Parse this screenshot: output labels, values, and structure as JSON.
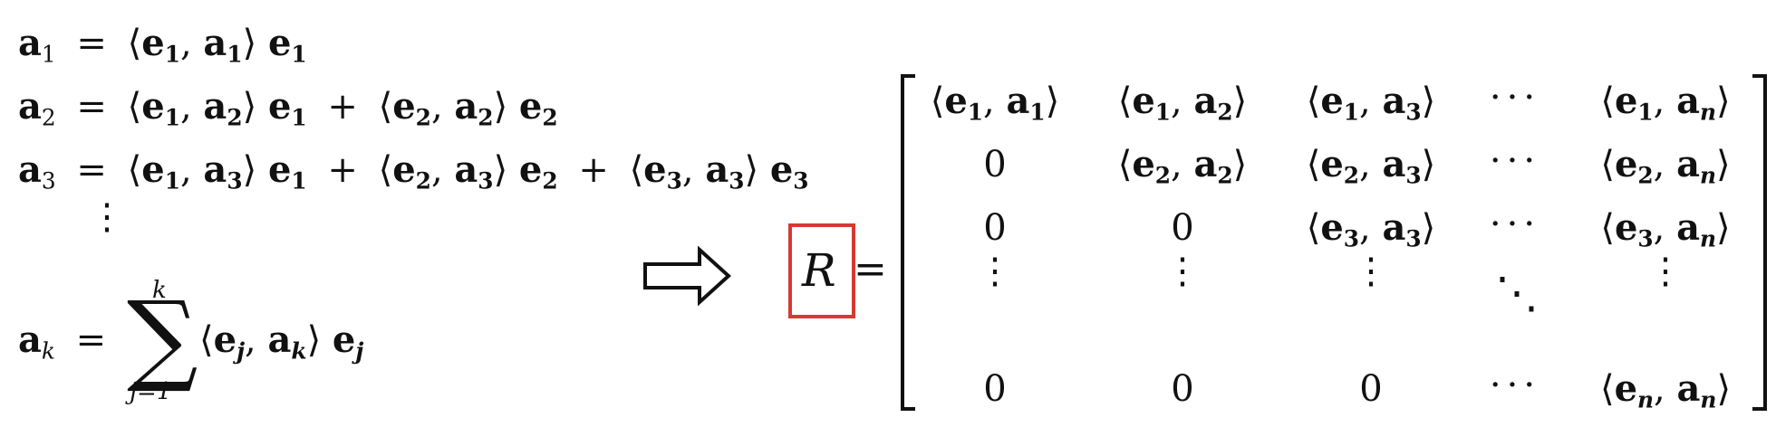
{
  "equations": {
    "a1": {
      "lhs": "a",
      "lhs_sub": "1",
      "eq": "=",
      "terms": [
        {
          "l": "⟨",
          "e": "e",
          "es": "1",
          "c": ",",
          "a": "a",
          "as": "1",
          "r": "⟩",
          "v": "e",
          "vs": "1"
        }
      ]
    },
    "a2": {
      "lhs": "a",
      "lhs_sub": "2",
      "eq": "=",
      "terms": [
        {
          "l": "⟨",
          "e": "e",
          "es": "1",
          "c": ",",
          "a": "a",
          "as": "2",
          "r": "⟩",
          "v": "e",
          "vs": "1"
        },
        {
          "l": "⟨",
          "e": "e",
          "es": "2",
          "c": ",",
          "a": "a",
          "as": "2",
          "r": "⟩",
          "v": "e",
          "vs": "2"
        }
      ]
    },
    "a3": {
      "lhs": "a",
      "lhs_sub": "3",
      "eq": "=",
      "terms": [
        {
          "l": "⟨",
          "e": "e",
          "es": "1",
          "c": ",",
          "a": "a",
          "as": "3",
          "r": "⟩",
          "v": "e",
          "vs": "1"
        },
        {
          "l": "⟨",
          "e": "e",
          "es": "2",
          "c": ",",
          "a": "a",
          "as": "3",
          "r": "⟩",
          "v": "e",
          "vs": "2"
        },
        {
          "l": "⟨",
          "e": "e",
          "es": "3",
          "c": ",",
          "a": "a",
          "as": "3",
          "r": "⟩",
          "v": "e",
          "vs": "3"
        }
      ]
    },
    "plus": "+",
    "vdots": "⋮",
    "ak": {
      "lhs": "a",
      "lhs_sub": "k",
      "eq": "=",
      "sigma": "∑",
      "upper": "k",
      "lower": "j=1",
      "term": {
        "l": "⟨",
        "e": "e",
        "es": "j",
        "c": ",",
        "a": "a",
        "as": "k",
        "r": "⟩",
        "v": "e",
        "vs": "j"
      }
    }
  },
  "arrow_icon": "double-arrow-right-icon",
  "highlight_color": "#d63a32",
  "matrix": {
    "name": "R",
    "eq": "=",
    "rows": [
      [
        {
          "t": "ip",
          "e": "1",
          "a": "1"
        },
        {
          "t": "ip",
          "e": "1",
          "a": "2"
        },
        {
          "t": "ip",
          "e": "1",
          "a": "3"
        },
        {
          "t": "dots"
        },
        {
          "t": "ip",
          "e": "1",
          "a": "n"
        }
      ],
      [
        {
          "t": "0"
        },
        {
          "t": "ip",
          "e": "2",
          "a": "2"
        },
        {
          "t": "ip",
          "e": "2",
          "a": "3"
        },
        {
          "t": "dots"
        },
        {
          "t": "ip",
          "e": "2",
          "a": "n"
        }
      ],
      [
        {
          "t": "0"
        },
        {
          "t": "0"
        },
        {
          "t": "ip",
          "e": "3",
          "a": "3"
        },
        {
          "t": "dots"
        },
        {
          "t": "ip",
          "e": "3",
          "a": "n"
        }
      ],
      [
        {
          "t": "vdots"
        },
        {
          "t": "vdots"
        },
        {
          "t": "vdots"
        },
        {
          "t": "ddots"
        },
        {
          "t": "vdots"
        }
      ],
      [
        {
          "t": "0"
        },
        {
          "t": "0"
        },
        {
          "t": "0"
        },
        {
          "t": "dots"
        },
        {
          "t": "ip",
          "e": "n",
          "a": "n"
        }
      ]
    ],
    "zero": "0",
    "hdots": "···",
    "vdots": "⋮",
    "ddots": "⋱"
  }
}
